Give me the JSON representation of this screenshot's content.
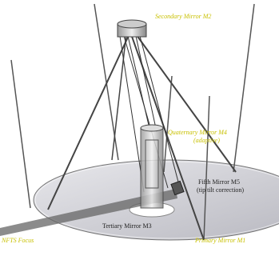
{
  "labels": {
    "secondary": "Secondary Mirror M2",
    "quaternary": "Quaternary Mirror M4",
    "quaternary_note": "(adaptive)",
    "fifth": "Fifth Mirror M5",
    "fifth_note": "(tip tilt correction)",
    "tertiary": "Tertiary Mirror M3",
    "focus": "NFTS Focus",
    "primary": "Primary Mirror M1"
  }
}
